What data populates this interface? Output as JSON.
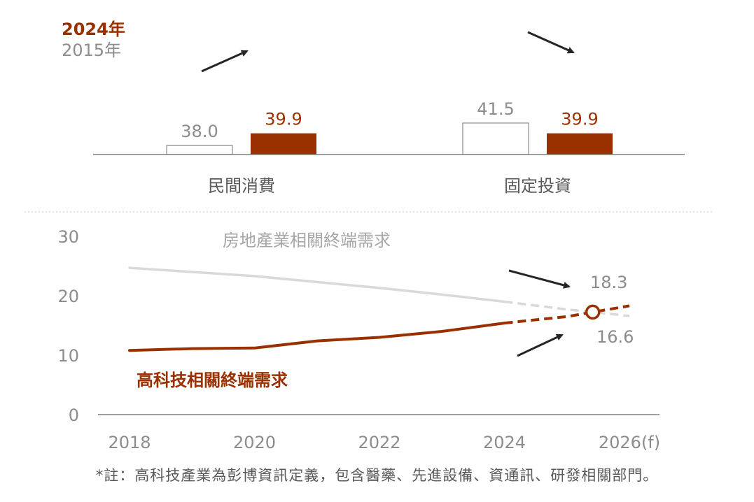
{
  "colors": {
    "accent": "#9a3000",
    "gray_text": "#8c8c8c",
    "light_line": "#d9d9d9",
    "axis": "#7f7f7f",
    "arrow": "#262626"
  },
  "chart_data": [
    {
      "type": "bar",
      "categories": [
        "民間消費",
        "固定投資"
      ],
      "series": [
        {
          "name": "2015年",
          "values": [
            38.0,
            41.5
          ],
          "value_labels": [
            "38.0",
            "41.5"
          ],
          "style": "hollow"
        },
        {
          "name": "2024年",
          "values": [
            39.9,
            39.9
          ],
          "value_labels": [
            "39.9",
            "39.9"
          ],
          "style": "filled"
        }
      ],
      "legend": {
        "position": "top-left",
        "entries": [
          "2024年",
          "2015年"
        ]
      },
      "trend_arrows": [
        "up",
        "down"
      ]
    },
    {
      "type": "line",
      "x": [
        "2018",
        "2019",
        "2020",
        "2021",
        "2022",
        "2023",
        "2024",
        "2025",
        "2026(f)"
      ],
      "xticks": [
        "2018",
        "2020",
        "2022",
        "2024",
        "2026(f)"
      ],
      "yticks": [
        "0",
        "10",
        "20",
        "30"
      ],
      "ylim": [
        0,
        30
      ],
      "forecast_from": "2024",
      "series": [
        {
          "name": "房地產業相關終端需求",
          "values": [
            24.7,
            24.0,
            23.3,
            22.3,
            21.3,
            20.2,
            19.0,
            17.7,
            16.6
          ],
          "end_label": "16.6"
        },
        {
          "name": "高科技相關終端需求",
          "values": [
            10.8,
            11.1,
            11.2,
            12.4,
            13.0,
            14.0,
            15.4,
            16.5,
            18.3
          ],
          "end_label": "18.3"
        }
      ],
      "crossover_marker": true
    }
  ],
  "footnote": "*註：高科技產業為彭博資訊定義，包含醫藥、先進設備、資通訊、研發相關部門。"
}
